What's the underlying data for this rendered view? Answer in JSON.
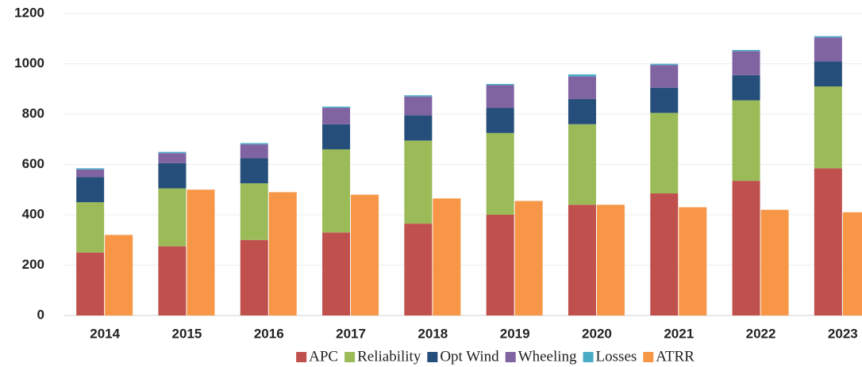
{
  "chart_data": {
    "type": "bar",
    "categories": [
      "2014",
      "2015",
      "2016",
      "2017",
      "2018",
      "2019",
      "2020",
      "2021",
      "2022",
      "2023"
    ],
    "series": [
      {
        "name": "APC",
        "color": "#c0504d",
        "stack": 0,
        "values": [
          250,
          275,
          300,
          330,
          365,
          400,
          440,
          485,
          535,
          585
        ]
      },
      {
        "name": "Reliability",
        "color": "#9bbb59",
        "stack": 0,
        "values": [
          200,
          230,
          225,
          330,
          330,
          325,
          320,
          320,
          320,
          325
        ]
      },
      {
        "name": "Opt Wind",
        "color": "#254e7a",
        "stack": 0,
        "values": [
          100,
          100,
          100,
          100,
          100,
          100,
          100,
          100,
          100,
          100
        ]
      },
      {
        "name": "Wheeling",
        "color": "#8064a2",
        "stack": 0,
        "values": [
          30,
          40,
          55,
          65,
          75,
          90,
          90,
          90,
          95,
          95
        ]
      },
      {
        "name": "Losses",
        "color": "#4bacc6",
        "stack": 0,
        "values": [
          5,
          5,
          5,
          5,
          5,
          5,
          8,
          5,
          5,
          5
        ]
      },
      {
        "name": "ATRR",
        "color": "#f79646",
        "stack": 1,
        "values": [
          320,
          500,
          490,
          480,
          465,
          455,
          440,
          430,
          420,
          410
        ]
      }
    ],
    "ylim": [
      0,
      1200
    ],
    "yticks": [
      0,
      200,
      400,
      600,
      800,
      1000,
      1200
    ],
    "grid": true,
    "legend": "bottom"
  }
}
